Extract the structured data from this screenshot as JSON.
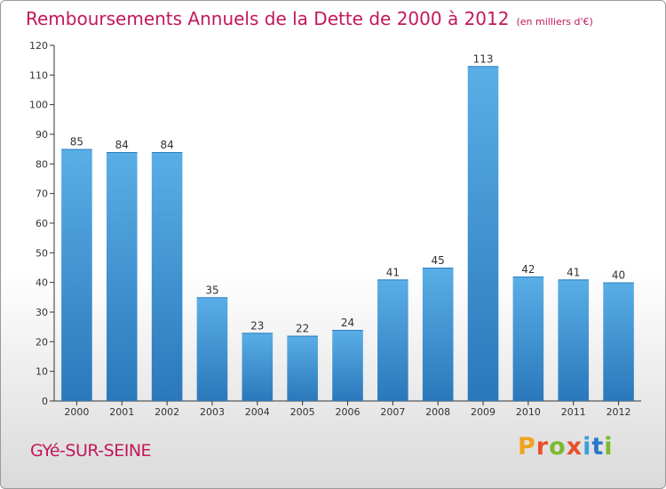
{
  "title": "Remboursements Annuels de la Dette de 2000 à 2012",
  "unit": "(en milliers d'€)",
  "town": "GYé-SUR-SEINE",
  "logo": {
    "letters": [
      "P",
      "r",
      "o",
      "x",
      "i",
      "t",
      "i"
    ],
    "colors": [
      "#f0a31f",
      "#e8512a",
      "#7cb930",
      "#e8512a",
      "#3aa0d8",
      "#2a78c8",
      "#7cb930"
    ]
  },
  "colors": {
    "title": "#c2185b",
    "bar_top": "#5aaee6",
    "bar_bottom": "#2a78bb"
  },
  "chart_data": {
    "type": "bar",
    "categories": [
      "2000",
      "2001",
      "2002",
      "2003",
      "2004",
      "2005",
      "2006",
      "2007",
      "2008",
      "2009",
      "2010",
      "2011",
      "2012"
    ],
    "values": [
      85,
      84,
      84,
      35,
      23,
      22,
      24,
      41,
      45,
      113,
      42,
      41,
      40
    ],
    "ylim": [
      0,
      120
    ],
    "yticks": [
      0,
      10,
      20,
      30,
      40,
      50,
      60,
      70,
      80,
      90,
      100,
      110,
      120
    ],
    "grid": false,
    "xlabel": "",
    "ylabel": ""
  }
}
